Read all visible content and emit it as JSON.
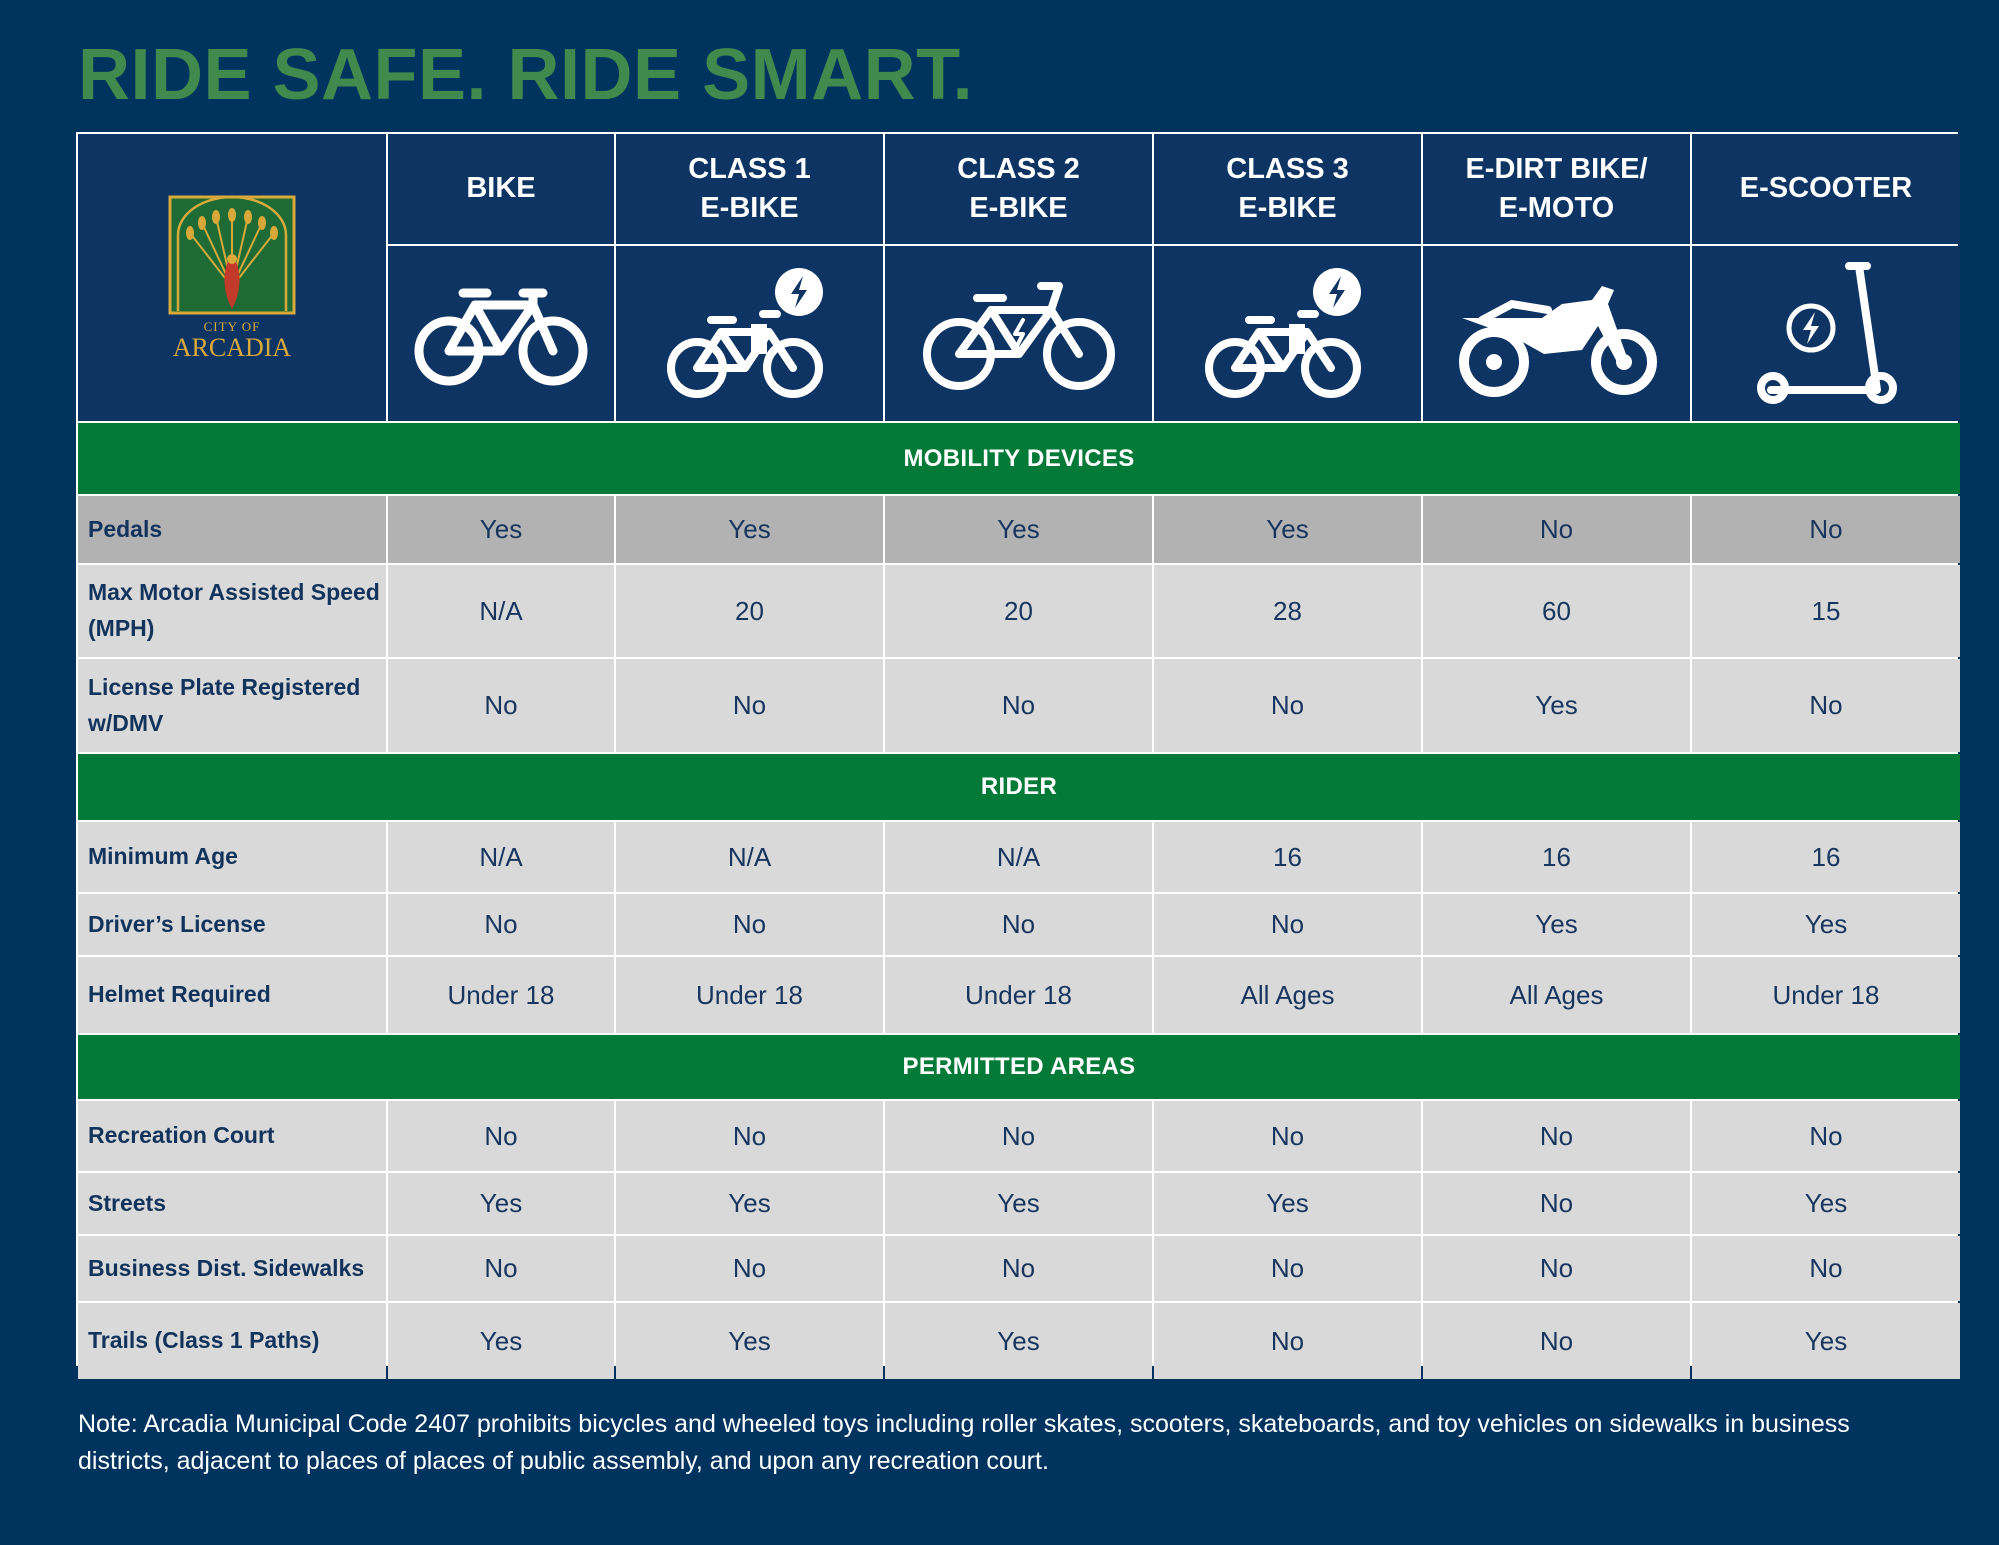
{
  "title": "RIDE SAFE. RIDE SMART.",
  "logo": {
    "line1": "CITY OF",
    "line2": "ARCADIA",
    "icon": "peacock-logo"
  },
  "columns": [
    {
      "label": "BIKE",
      "icon": "bicycle-icon"
    },
    {
      "label": "CLASS 1\nE-BIKE",
      "icon": "ebike-class1-icon"
    },
    {
      "label": "CLASS 2\nE-BIKE",
      "icon": "ebike-class2-icon"
    },
    {
      "label": "CLASS 3\nE-BIKE",
      "icon": "ebike-class3-icon"
    },
    {
      "label": "E-DIRT BIKE/\nE-MOTO",
      "icon": "dirt-bike-icon"
    },
    {
      "label": "E-SCOOTER",
      "icon": "scooter-icon"
    }
  ],
  "sections": [
    {
      "title": "MOBILITY DEVICES",
      "rows": [
        {
          "label": "Pedals",
          "values": [
            "Yes",
            "Yes",
            "Yes",
            "Yes",
            "No",
            "No"
          ]
        },
        {
          "label": "Max Motor Assisted Speed (MPH)",
          "values": [
            "N/A",
            "20",
            "20",
            "28",
            "60",
            "15"
          ]
        },
        {
          "label": "License Plate Registered w/DMV",
          "values": [
            "No",
            "No",
            "No",
            "No",
            "Yes",
            "No"
          ]
        }
      ]
    },
    {
      "title": "RIDER",
      "rows": [
        {
          "label": "Minimum Age",
          "values": [
            "N/A",
            "N/A",
            "N/A",
            "16",
            "16",
            "16"
          ]
        },
        {
          "label": "Driver’s License",
          "values": [
            "No",
            "No",
            "No",
            "No",
            "Yes",
            "Yes"
          ]
        },
        {
          "label": "Helmet Required",
          "values": [
            "Under 18",
            "Under 18",
            "Under 18",
            "All Ages",
            "All Ages",
            "Under 18"
          ]
        }
      ]
    },
    {
      "title": "PERMITTED AREAS",
      "rows": [
        {
          "label": "Recreation Court",
          "values": [
            "No",
            "No",
            "No",
            "No",
            "No",
            "No"
          ]
        },
        {
          "label": "Streets",
          "values": [
            "Yes",
            "Yes",
            "Yes",
            "Yes",
            "No",
            "Yes"
          ]
        },
        {
          "label": "Business Dist. Sidewalks",
          "values": [
            "No",
            "No",
            "No",
            "No",
            "No",
            "No"
          ]
        },
        {
          "label": "Trails (Class 1 Paths)",
          "values": [
            "Yes",
            "Yes",
            "Yes",
            "No",
            "No",
            "Yes"
          ]
        }
      ]
    }
  ],
  "note": "Note: Arcadia Municipal Code 2407 prohibits bicycles and wheeled toys including roller skates, scooters, skateboards, and toy vehicles on sidewalks in business districts, adjacent to places of places of public assembly, and upon any recreation court.",
  "colors": {
    "background": "#00335e",
    "title": "#3f8a4c",
    "section": "#037a37",
    "row": "#d9d9d9",
    "row_highlight": "#b2b2b2"
  }
}
